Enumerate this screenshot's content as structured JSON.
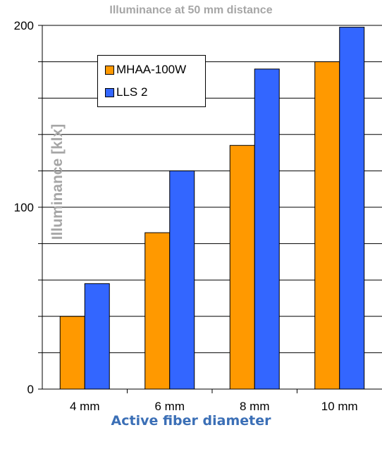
{
  "chart_data": {
    "type": "bar",
    "title": "Illuminance at 50 mm distance",
    "xlabel": "Active fiber diameter",
    "ylabel": "Illuminance [klx]",
    "categories": [
      "4 mm",
      "6 mm",
      "8 mm",
      "10 mm"
    ],
    "series": [
      {
        "name": "MHAA-100W",
        "color": "#ff9900",
        "values": [
          40,
          86,
          134,
          180
        ]
      },
      {
        "name": "LLS 2",
        "color": "#3366ff",
        "values": [
          58,
          120,
          176,
          199
        ]
      }
    ],
    "ylim": [
      0,
      200
    ],
    "yticks": [
      "0",
      "100",
      "200"
    ],
    "grid": true,
    "legend_position": "top-left"
  }
}
